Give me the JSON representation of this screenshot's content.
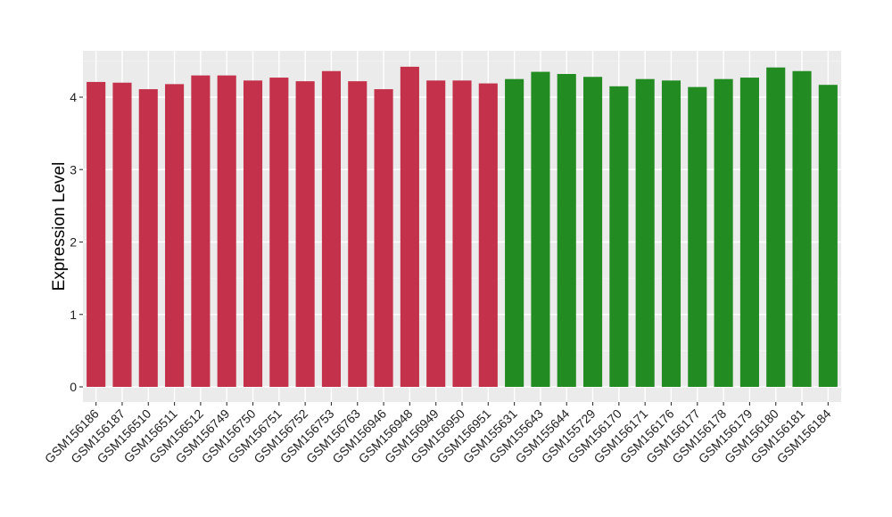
{
  "chart_data": {
    "type": "bar",
    "title": "",
    "xlabel": "",
    "ylabel": "Expression Level",
    "ylim": [
      -0.2,
      4.65
    ],
    "yticks": [
      0,
      1,
      2,
      3,
      4
    ],
    "grid": true,
    "background": "#ebebeb",
    "gridline_color": "#ffffff",
    "categories": [
      "GSM156186",
      "GSM156187",
      "GSM156510",
      "GSM156511",
      "GSM156512",
      "GSM156749",
      "GSM156750",
      "GSM156751",
      "GSM156752",
      "GSM156753",
      "GSM156763",
      "GSM156946",
      "GSM156948",
      "GSM156949",
      "GSM156950",
      "GSM156951",
      "GSM155631",
      "GSM155643",
      "GSM155644",
      "GSM155729",
      "GSM156170",
      "GSM156171",
      "GSM156176",
      "GSM156177",
      "GSM156178",
      "GSM156179",
      "GSM156180",
      "GSM156181",
      "GSM156184"
    ],
    "values": [
      4.21,
      4.2,
      4.11,
      4.18,
      4.3,
      4.3,
      4.23,
      4.27,
      4.22,
      4.36,
      4.22,
      4.11,
      4.42,
      4.23,
      4.23,
      4.19,
      4.25,
      4.35,
      4.32,
      4.28,
      4.15,
      4.25,
      4.23,
      4.14,
      4.25,
      4.27,
      4.41,
      4.36,
      4.17
    ],
    "group_sizes": [
      16,
      13
    ],
    "group_colors": [
      "#c3324a",
      "#228b22"
    ]
  }
}
